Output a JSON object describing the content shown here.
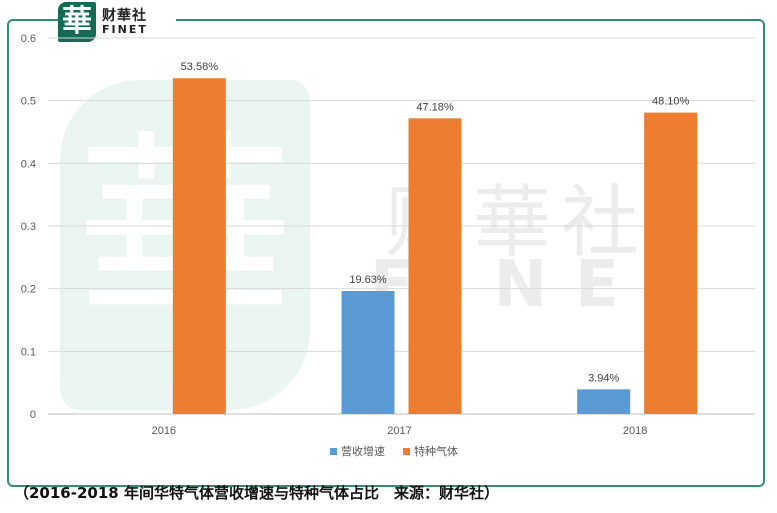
{
  "brand": {
    "mark": "華",
    "name_cn": "财華社",
    "name_en": "FINET"
  },
  "chart_data": {
    "type": "bar",
    "categories": [
      "2016",
      "2017",
      "2018"
    ],
    "series": [
      {
        "name": "营收增速",
        "color": "#5b9bd5",
        "values": [
          null,
          0.1963,
          0.0394
        ],
        "labels": [
          "",
          "19.63%",
          "3.94%"
        ]
      },
      {
        "name": "特种气体",
        "color": "#ed7d31",
        "values": [
          0.5358,
          0.4718,
          0.481
        ],
        "labels": [
          "53.58%",
          "47.18%",
          "48.10%"
        ]
      }
    ],
    "yticks": [
      "0",
      "0.1",
      "0.2",
      "0.3",
      "0.4",
      "0.5",
      "0.6"
    ],
    "ylim": [
      0,
      0.6
    ],
    "grid": true,
    "legend_position": "bottom"
  },
  "caption": "（2016-2018 年间华特气体营收增速与特种气体占比　来源：财华社）"
}
